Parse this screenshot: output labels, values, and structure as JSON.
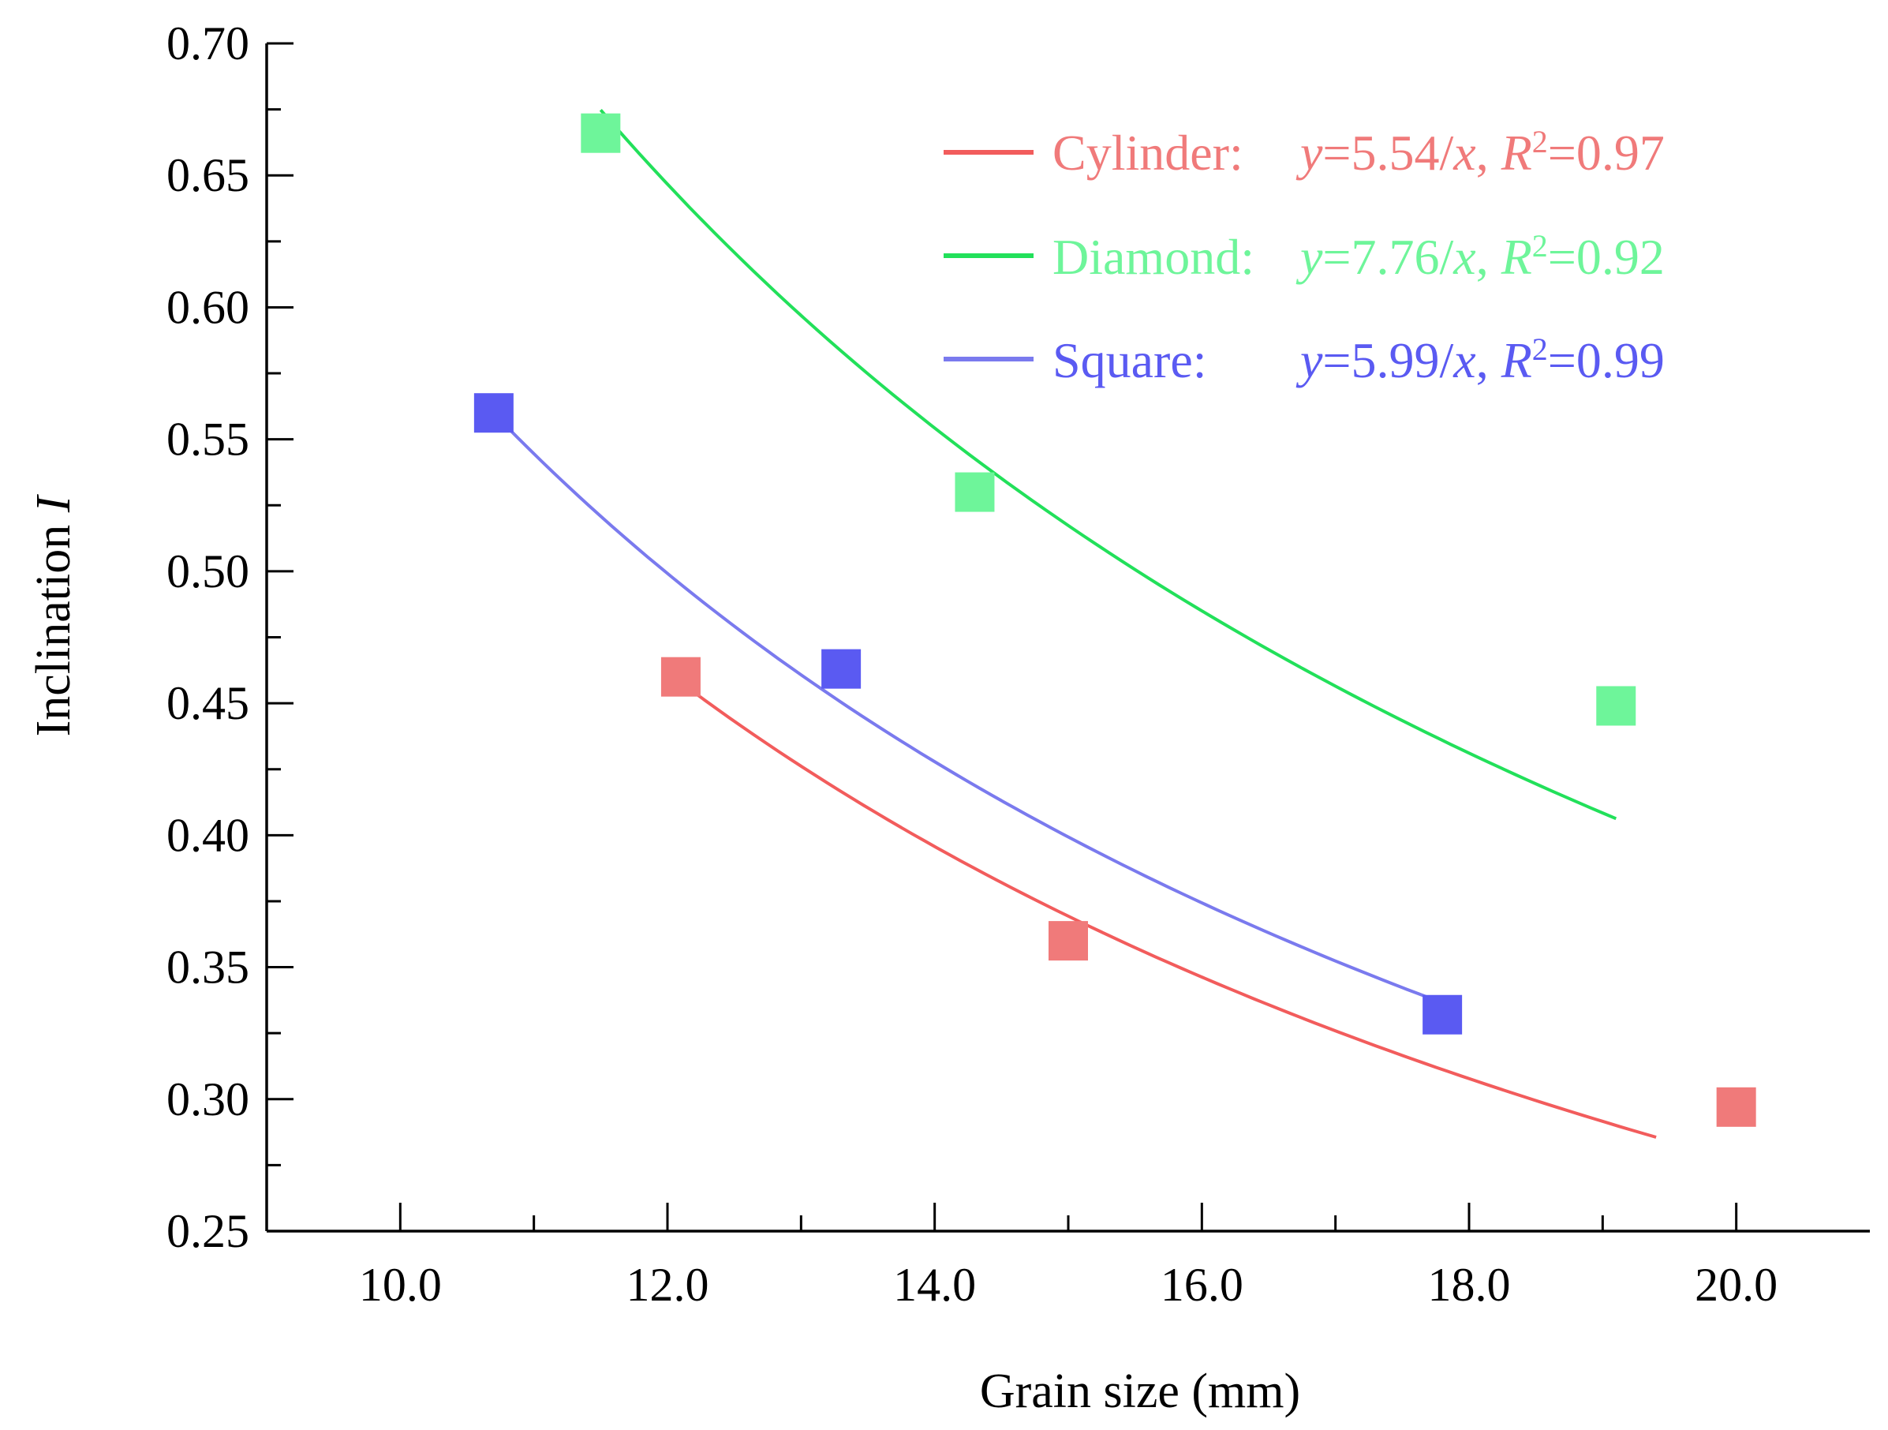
{
  "chart_data": {
    "type": "scatter",
    "title": "",
    "xlabel": "Grain size (mm)",
    "ylabel_main": "Inclination ",
    "ylabel_var": "I",
    "xlim": [
      9.0,
      21.0
    ],
    "ylim": [
      0.25,
      0.7
    ],
    "xticks": [
      10.0,
      12.0,
      14.0,
      16.0,
      18.0,
      20.0
    ],
    "xtick_labels": [
      "10.0",
      "12.0",
      "14.0",
      "16.0",
      "18.0",
      "20.0"
    ],
    "xminor": [
      11.0,
      13.0,
      15.0,
      17.0,
      19.0
    ],
    "yticks": [
      0.25,
      0.3,
      0.35,
      0.4,
      0.45,
      0.5,
      0.55,
      0.6,
      0.65,
      0.7
    ],
    "ytick_labels": [
      "0.25",
      "0.30",
      "0.35",
      "0.40",
      "0.45",
      "0.50",
      "0.55",
      "0.60",
      "0.65",
      "0.70"
    ],
    "yminor": [
      0.275,
      0.325,
      0.375,
      0.425,
      0.475,
      0.525,
      0.575,
      0.625,
      0.675
    ],
    "legend_position": "top-right",
    "series": [
      {
        "name": "Cylinder",
        "color": "#f07a7a",
        "x": [
          12.1,
          15.0,
          20.0
        ],
        "y": [
          0.46,
          0.36,
          0.297
        ],
        "fit_coefficient": 5.54,
        "fit_range": [
          12.1,
          19.4
        ],
        "legend_label": "Cylinder:",
        "legend_eq_pre": "y",
        "legend_eq_mid": "=5.54/",
        "legend_eq_x": "x",
        "legend_eq_comma": ", ",
        "legend_r": "R",
        "legend_sup": "2",
        "legend_r_val": "=0.97"
      },
      {
        "name": "Diamond",
        "color": "#6ef59a",
        "x": [
          11.5,
          14.3,
          19.1
        ],
        "y": [
          0.666,
          0.53,
          0.449
        ],
        "fit_coefficient": 7.76,
        "fit_range": [
          11.5,
          19.1
        ],
        "legend_label": "Diamond:",
        "legend_eq_pre": "y",
        "legend_eq_mid": "=7.76/",
        "legend_eq_x": "x",
        "legend_eq_comma": ", ",
        "legend_r": "R",
        "legend_sup": "2",
        "legend_r_val": "=0.92"
      },
      {
        "name": "Square",
        "color": "#5a5af2",
        "x": [
          10.7,
          13.3,
          17.8
        ],
        "y": [
          0.56,
          0.463,
          0.332
        ],
        "fit_coefficient": 5.99,
        "fit_range": [
          10.7,
          17.8
        ],
        "legend_label": "Square:",
        "legend_eq_pre": "y",
        "legend_eq_mid": "=5.99/",
        "legend_eq_x": "x",
        "legend_eq_comma": ", ",
        "legend_r": "R",
        "legend_sup": "2",
        "legend_r_val": "=0.99"
      }
    ],
    "fit_colors": {
      "Cylinder": "#f25c5c",
      "Diamond": "#22e05a",
      "Square": "#7a7aee"
    }
  }
}
